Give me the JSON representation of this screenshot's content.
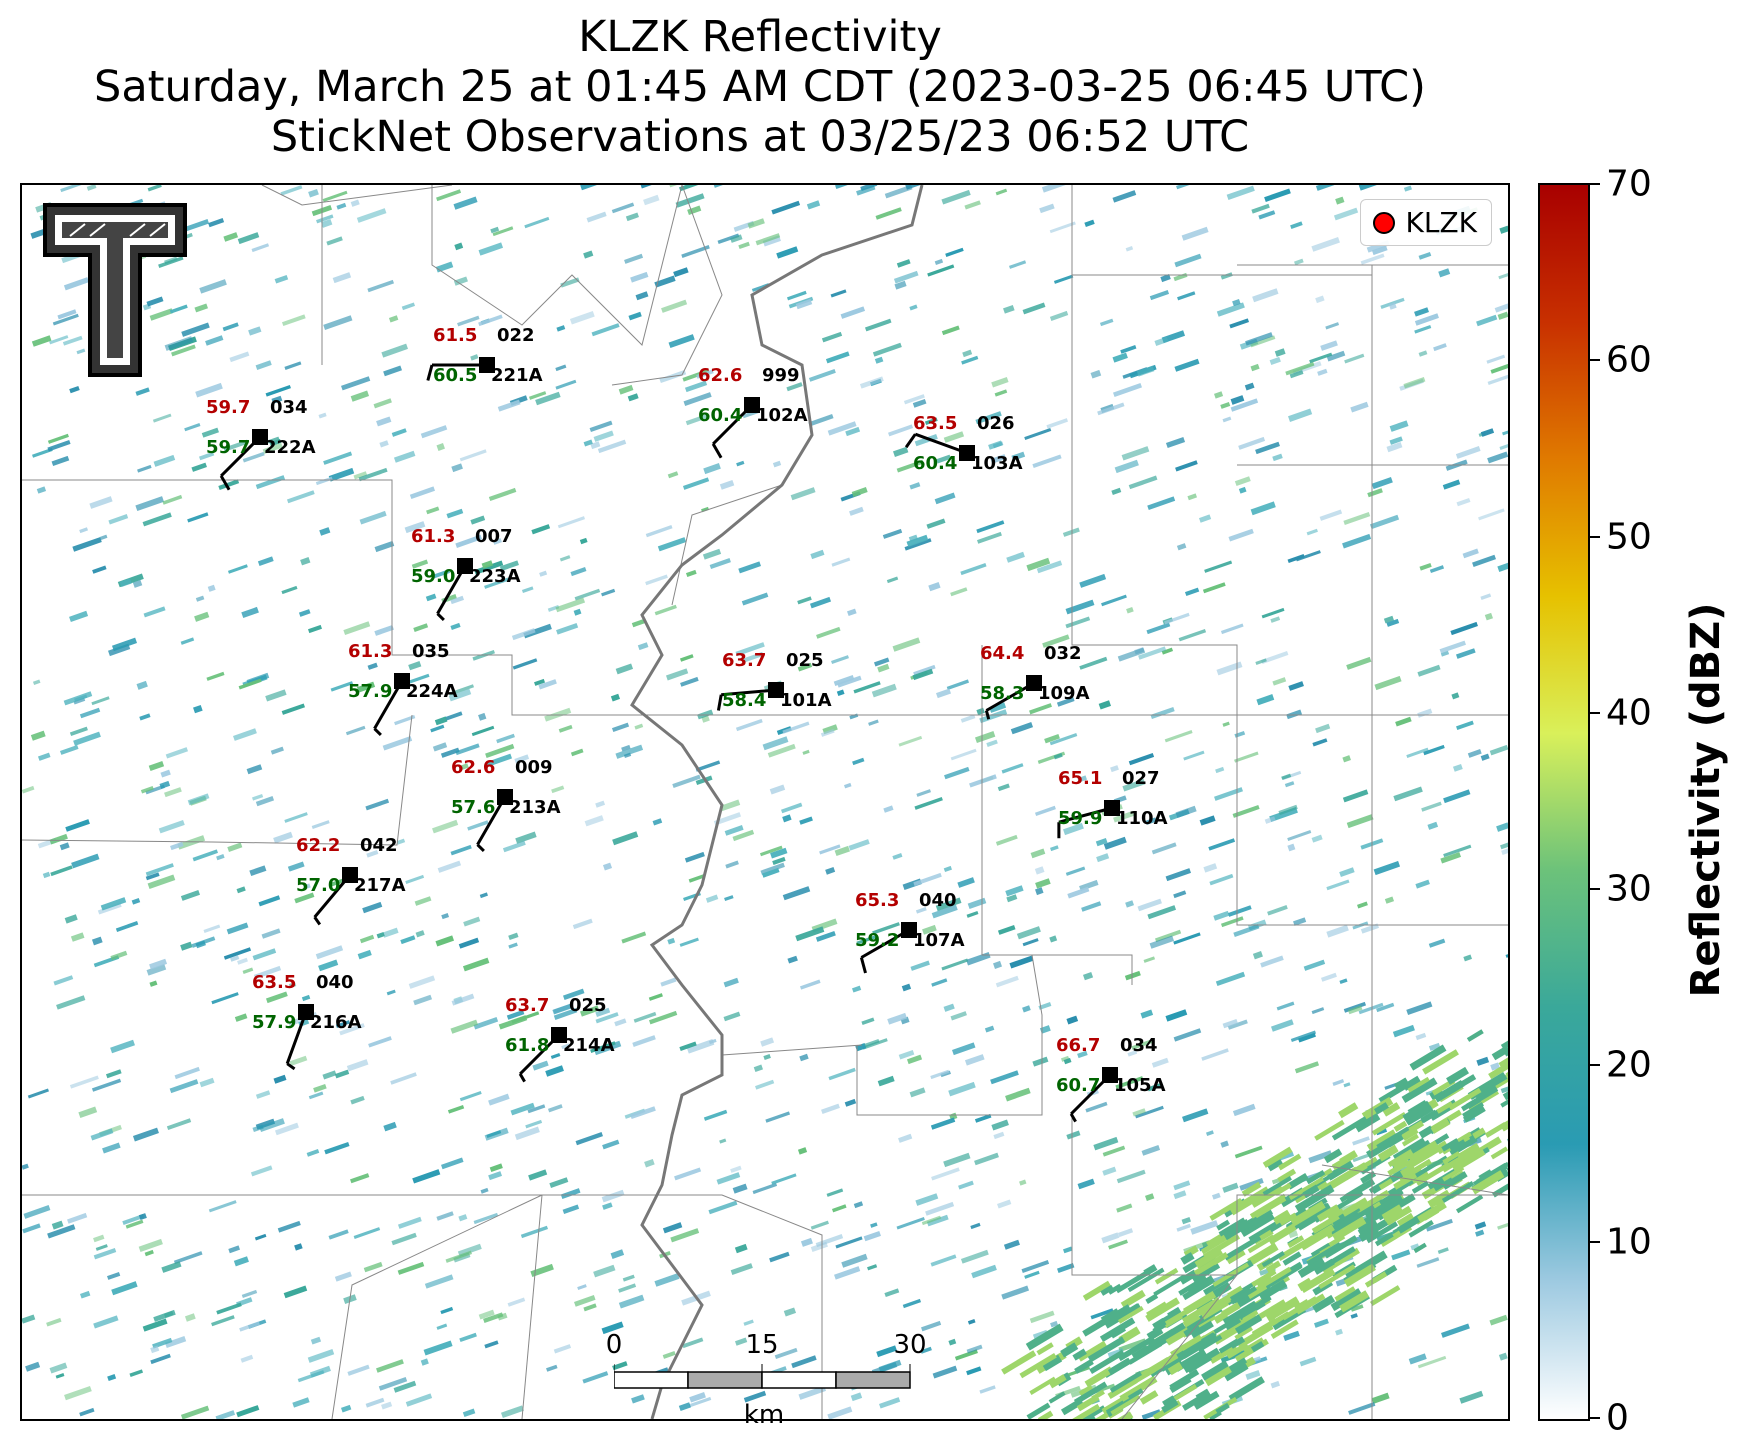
{
  "title": {
    "line1": "KLZK Reflectivity",
    "line2": "Saturday, March 25 at 01:45 AM CDT (2023-03-25 06:45 UTC)",
    "line3": "StickNet Observations at 03/25/23 06:52 UTC"
  },
  "legend": {
    "label": "KLZK",
    "marker_color": "#ff0000"
  },
  "colorbar": {
    "title": "Reflectivity (dBZ)",
    "min": 0,
    "max": 70,
    "ticks": [
      "0",
      "10",
      "20",
      "30",
      "40",
      "50",
      "60",
      "70"
    ],
    "colors": [
      "#ffffff",
      "#9ecae1",
      "#2a9bb3",
      "#3aa89a",
      "#6cc27a",
      "#d9f05a",
      "#e6c100",
      "#e07a00",
      "#c83000",
      "#a80000"
    ]
  },
  "scalebar": {
    "ticks": [
      "0",
      "15",
      "30"
    ],
    "unit": "km"
  },
  "logo": {
    "text": "Texas Tech University Double T"
  },
  "stations": [
    {
      "id": "221A",
      "temp": "61.5",
      "dew": "60.5",
      "pres": "022",
      "wind_dir": 270,
      "wind_kt": 10
    },
    {
      "id": "222A",
      "temp": "59.7",
      "dew": "59.7",
      "pres": "034",
      "wind_dir": 225,
      "wind_kt": 10
    },
    {
      "id": "102A",
      "temp": "62.6",
      "dew": "60.4",
      "pres": "999",
      "wind_dir": 225,
      "wind_kt": 10
    },
    {
      "id": "103A",
      "temp": "63.5",
      "dew": "60.4",
      "pres": "026",
      "wind_dir": 290,
      "wind_kt": 10
    },
    {
      "id": "223A",
      "temp": "61.3",
      "dew": "59.0",
      "pres": "007",
      "wind_dir": 210,
      "wind_kt": 5
    },
    {
      "id": "224A",
      "temp": "61.3",
      "dew": "57.9",
      "pres": "035",
      "wind_dir": 210,
      "wind_kt": 5
    },
    {
      "id": "101A",
      "temp": "63.7",
      "dew": "58.4",
      "pres": "025",
      "wind_dir": 265,
      "wind_kt": 10
    },
    {
      "id": "109A",
      "temp": "64.4",
      "dew": "58.3",
      "pres": "032",
      "wind_dir": 240,
      "wind_kt": 5
    },
    {
      "id": "213A",
      "temp": "62.6",
      "dew": "57.6",
      "pres": "009",
      "wind_dir": 210,
      "wind_kt": 5
    },
    {
      "id": "110A",
      "temp": "65.1",
      "dew": "59.9",
      "pres": "027",
      "wind_dir": 255,
      "wind_kt": 10
    },
    {
      "id": "217A",
      "temp": "62.2",
      "dew": "57.0",
      "pres": "042",
      "wind_dir": 220,
      "wind_kt": 5
    },
    {
      "id": "107A",
      "temp": "65.3",
      "dew": "59.2",
      "pres": "040",
      "wind_dir": 240,
      "wind_kt": 10
    },
    {
      "id": "216A",
      "temp": "63.5",
      "dew": "57.9",
      "pres": "040",
      "wind_dir": 200,
      "wind_kt": 5
    },
    {
      "id": "214A",
      "temp": "63.7",
      "dew": "61.8",
      "pres": "025",
      "wind_dir": 225,
      "wind_kt": 5
    },
    {
      "id": "105A",
      "temp": "66.7",
      "dew": "60.7",
      "pres": "034",
      "wind_dir": 225,
      "wind_kt": 5
    }
  ]
}
